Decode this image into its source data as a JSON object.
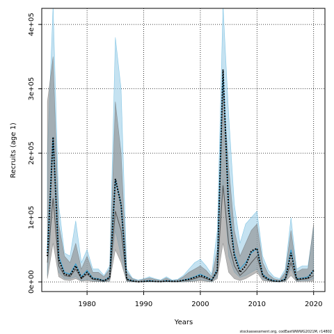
{
  "chart_data": {
    "type": "line",
    "xlabel": "Years",
    "ylabel": "Recruits (age 1)",
    "source_note": "stockassessment.org, codEastWWWG2021M, r14802",
    "xlim": [
      1972,
      2022
    ],
    "ylim": [
      -15000,
      425000
    ],
    "x_ticks": [
      1980,
      1990,
      2000,
      2010,
      2020
    ],
    "x_tick_labels": [
      "1980",
      "1990",
      "2000",
      "2010",
      "2020"
    ],
    "y_ticks": [
      0,
      100000,
      200000,
      300000,
      400000
    ],
    "y_tick_labels": [
      "0e+00",
      "1e+05",
      "2e+05",
      "3e+05",
      "4e+05"
    ],
    "grid": true,
    "x": [
      1973,
      1974,
      1975,
      1976,
      1977,
      1978,
      1979,
      1980,
      1981,
      1982,
      1983,
      1984,
      1985,
      1986,
      1987,
      1988,
      1989,
      1990,
      1991,
      1992,
      1993,
      1994,
      1995,
      1996,
      1997,
      1998,
      1999,
      2000,
      2001,
      2002,
      2003,
      2004,
      2005,
      2006,
      2007,
      2008,
      2009,
      2010,
      2011,
      2012,
      2013,
      2014,
      2015,
      2016,
      2017,
      2018,
      2019,
      2020
    ],
    "series": [
      {
        "role": "blue_estimate",
        "color": "#2a9fd6",
        "band_color": "#9fcfe8",
        "mean": [
          45000,
          225000,
          40000,
          15000,
          12000,
          28000,
          8000,
          18000,
          6000,
          5000,
          2000,
          8000,
          160000,
          120000,
          5000,
          2000,
          0,
          1000,
          2000,
          1000,
          500,
          2000,
          1000,
          1000,
          3000,
          5000,
          8000,
          12000,
          8000,
          3000,
          20000,
          330000,
          120000,
          45000,
          20000,
          30000,
          45000,
          52000,
          12000,
          5000,
          2000,
          1000,
          5000,
          50000,
          5000,
          6000,
          8000,
          18000
        ],
        "lower": [
          10000,
          130000,
          15000,
          5000,
          5000,
          8000,
          2000,
          4000,
          2000,
          1000,
          0,
          2000,
          80000,
          40000,
          1000,
          0,
          0,
          0,
          0,
          0,
          0,
          0,
          0,
          0,
          0,
          1000,
          2000,
          4000,
          2000,
          0,
          8000,
          160000,
          40000,
          15000,
          7000,
          10000,
          15000,
          20000,
          4000,
          2000,
          0,
          0,
          1000,
          20000,
          1000,
          2000,
          2000,
          5000
        ],
        "upper": [
          200000,
          430000,
          120000,
          45000,
          40000,
          95000,
          30000,
          50000,
          20000,
          20000,
          10000,
          25000,
          380000,
          300000,
          20000,
          6000,
          3000,
          5000,
          8000,
          5000,
          3000,
          8000,
          3000,
          4000,
          10000,
          20000,
          30000,
          35000,
          25000,
          12000,
          80000,
          430000,
          260000,
          120000,
          60000,
          90000,
          100000,
          110000,
          40000,
          18000,
          8000,
          5000,
          20000,
          100000,
          20000,
          25000,
          25000,
          85000
        ]
      },
      {
        "role": "grey_estimate",
        "color": "#555555",
        "band_color": "#8c8c8c",
        "mean": [
          30000,
          130000,
          25000,
          10000,
          8000,
          20000,
          5000,
          12000,
          4000,
          3000,
          1000,
          5000,
          110000,
          80000,
          3000,
          1000,
          0,
          500,
          1000,
          500,
          300,
          1000,
          500,
          500,
          2000,
          3000,
          5000,
          8000,
          5000,
          2000,
          15000,
          150000,
          60000,
          25000,
          10000,
          18000,
          30000,
          40000,
          8000,
          3000,
          1000,
          500,
          3000,
          30000,
          3000,
          4000,
          5000,
          10000
        ],
        "lower": [
          5000,
          60000,
          8000,
          3000,
          2000,
          5000,
          1000,
          2000,
          500,
          500,
          0,
          1000,
          50000,
          30000,
          500,
          0,
          0,
          0,
          0,
          0,
          0,
          0,
          0,
          0,
          0,
          500,
          1000,
          2000,
          1000,
          0,
          5000,
          60000,
          15000,
          5000,
          2000,
          5000,
          10000,
          15000,
          2000,
          1000,
          0,
          0,
          500,
          10000,
          500,
          1000,
          1000,
          1000
        ],
        "upper": [
          280000,
          350000,
          90000,
          40000,
          30000,
          60000,
          20000,
          40000,
          15000,
          15000,
          8000,
          20000,
          280000,
          200000,
          15000,
          5000,
          2000,
          4000,
          6000,
          4000,
          2000,
          6000,
          2000,
          3000,
          8000,
          15000,
          20000,
          25000,
          18000,
          8000,
          50000,
          300000,
          180000,
          80000,
          40000,
          60000,
          80000,
          90000,
          30000,
          12000,
          5000,
          3000,
          15000,
          80000,
          15000,
          20000,
          20000,
          90000
        ]
      },
      {
        "role": "dotted_estimate",
        "color": "#000000",
        "values": [
          40000,
          225000,
          35000,
          12000,
          10000,
          25000,
          6000,
          15000,
          5000,
          4000,
          1500,
          7000,
          160000,
          120000,
          4000,
          1500,
          0,
          800,
          1500,
          800,
          400,
          1500,
          800,
          800,
          2500,
          4000,
          7000,
          10000,
          7000,
          2500,
          18000,
          330000,
          110000,
          40000,
          15000,
          25000,
          48000,
          52000,
          10000,
          4000,
          1500,
          800,
          4000,
          45000,
          4000,
          5000,
          6000,
          18000
        ]
      }
    ]
  }
}
